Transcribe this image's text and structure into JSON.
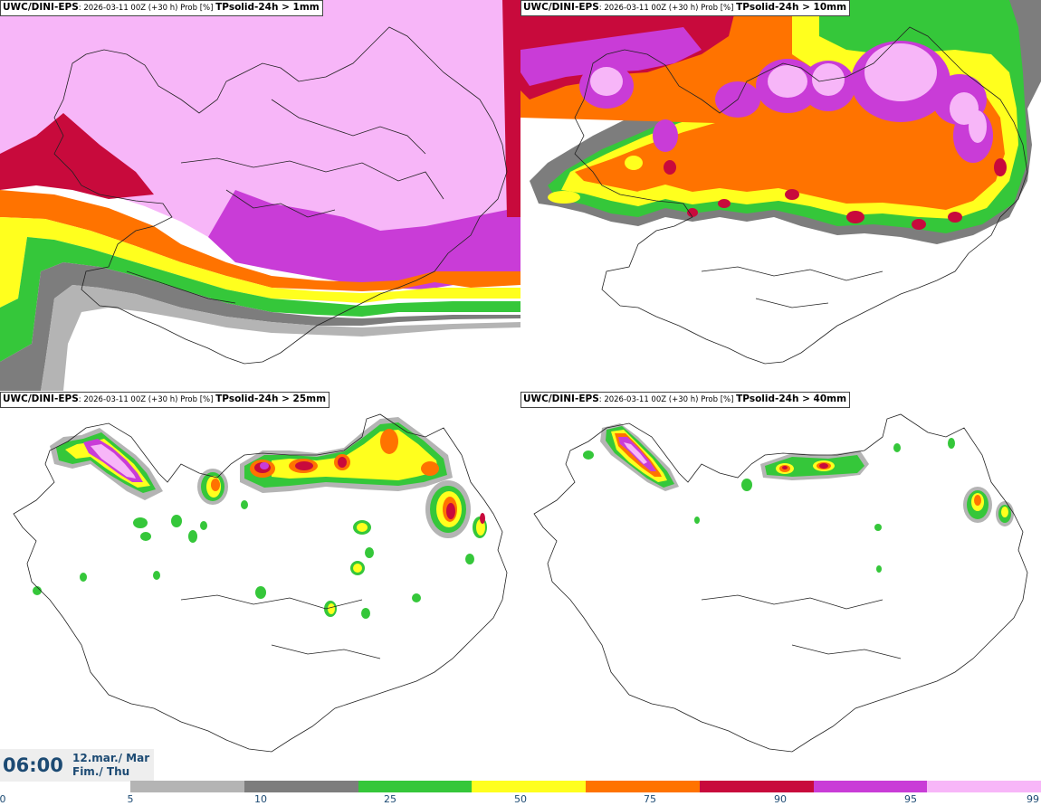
{
  "panels": [
    {
      "model": "UWC/DINI-EPS",
      "meta": ": 2026-03-11 00Z (+30 h) Prob [%] ",
      "param": "TPsolid-24h > 1mm"
    },
    {
      "model": "UWC/DINI-EPS",
      "meta": ": 2026-03-11 00Z (+30 h) Prob [%] ",
      "param": "TPsolid-24h > 10mm"
    },
    {
      "model": "UWC/DINI-EPS",
      "meta": ": 2026-03-11 00Z (+30 h) Prob [%] ",
      "param": "TPsolid-24h > 25mm"
    },
    {
      "model": "UWC/DINI-EPS",
      "meta": ": 2026-03-11 00Z (+30 h) Prob [%] ",
      "param": "TPsolid-24h > 40mm"
    }
  ],
  "time": {
    "clock": "06:00",
    "date": "12.mar./ Mar",
    "day": "Fim./ Thu"
  },
  "legend": {
    "ticks": [
      "0",
      "5",
      "10",
      "25",
      "50",
      "75",
      "90",
      "95",
      "99"
    ],
    "colors": [
      "#b4b4b4",
      "#7d7d7d",
      "#35c73a",
      "#ffff1e",
      "#ff7300",
      "#c80a3c",
      "#c93cd7",
      "#f7b6f8"
    ]
  }
}
